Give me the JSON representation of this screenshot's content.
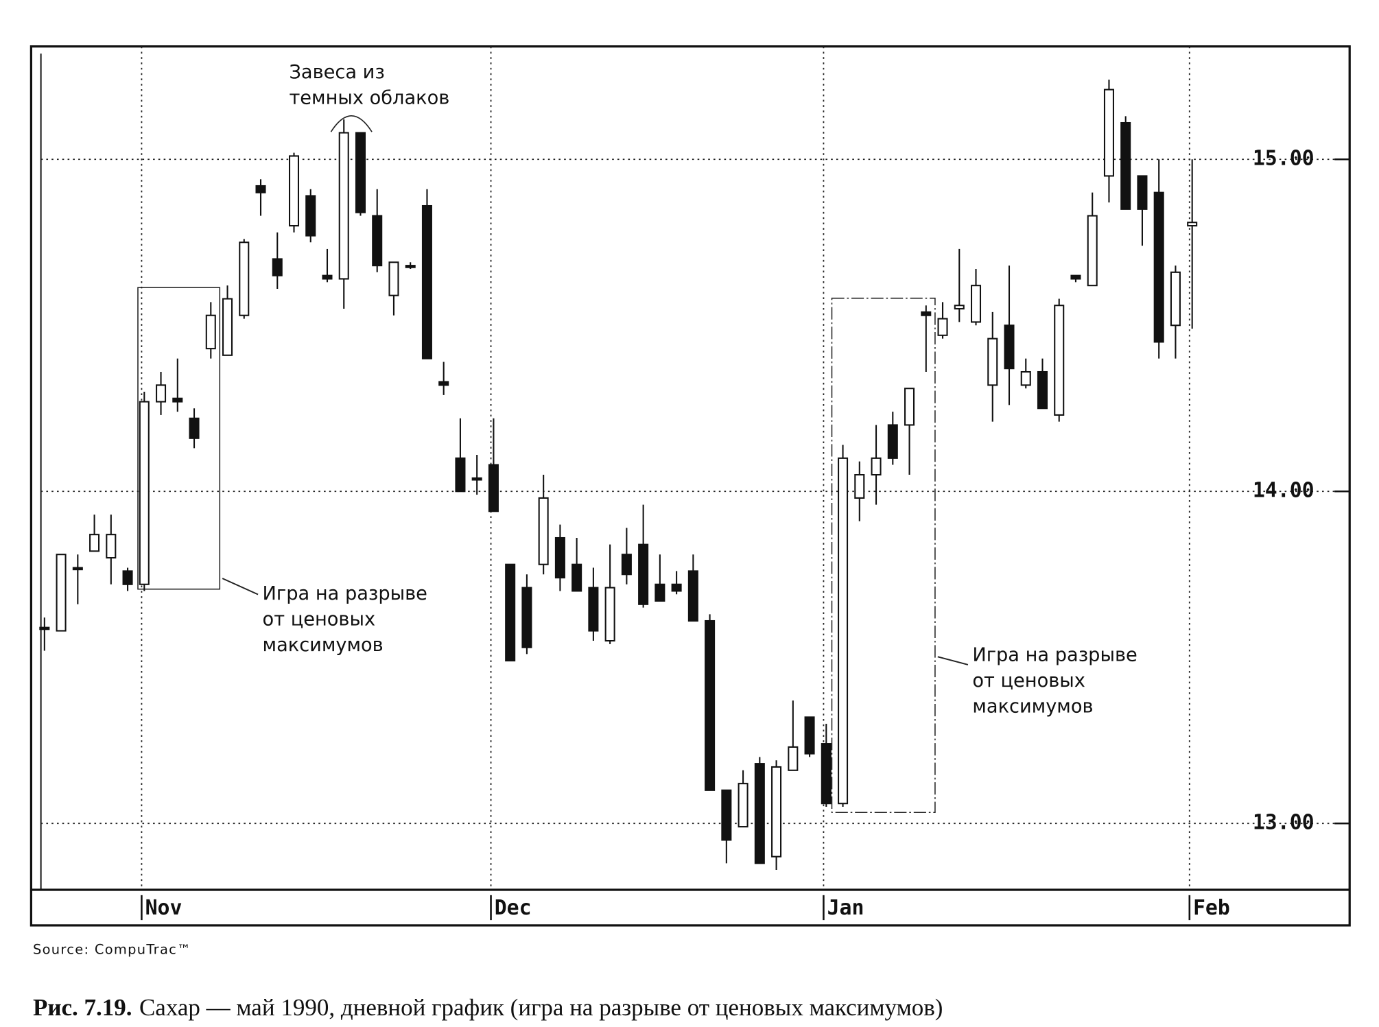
{
  "chart_data": {
    "type": "candlestick",
    "categories": [
      null,
      null,
      null,
      null,
      null,
      null,
      "Nov",
      null,
      null,
      null,
      null,
      null,
      null,
      null,
      null,
      null,
      null,
      null,
      null,
      null,
      null,
      null,
      null,
      null,
      null,
      null,
      null,
      "Dec",
      null,
      null,
      null,
      null,
      null,
      null,
      null,
      null,
      null,
      null,
      null,
      null,
      null,
      null,
      null,
      null,
      null,
      null,
      null,
      "Jan",
      null,
      null,
      null,
      null,
      null,
      null,
      null,
      null,
      null,
      null,
      null,
      null,
      null,
      null,
      null,
      null,
      null,
      null,
      null,
      null,
      null,
      "Feb"
    ],
    "open": [
      13.59,
      13.58,
      13.77,
      13.82,
      13.8,
      13.76,
      13.72,
      14.27,
      14.28,
      14.22,
      14.43,
      14.41,
      14.53,
      14.92,
      14.7,
      14.8,
      14.89,
      14.65,
      14.64,
      15.08,
      14.83,
      14.59,
      14.68,
      14.86,
      14.33,
      14.1,
      14.04,
      14.08,
      13.78,
      13.71,
      13.78,
      13.86,
      13.78,
      13.71,
      13.55,
      13.81,
      13.84,
      13.72,
      13.72,
      13.76,
      13.61,
      13.1,
      12.99,
      13.18,
      12.9,
      13.16,
      13.32,
      13.24,
      13.06,
      13.98,
      14.05,
      14.2,
      14.2,
      14.54,
      14.47,
      14.55,
      14.51,
      14.32,
      14.5,
      14.32,
      14.36,
      14.23,
      14.65,
      14.62,
      14.95,
      15.11,
      14.95,
      14.9,
      14.5,
      14.8
    ],
    "high": [
      13.62,
      13.81,
      13.81,
      13.93,
      13.93,
      13.77,
      14.3,
      14.36,
      14.4,
      14.25,
      14.57,
      14.62,
      14.76,
      14.94,
      14.78,
      15.02,
      14.91,
      14.73,
      15.12,
      15.08,
      14.91,
      14.69,
      14.69,
      14.91,
      14.39,
      14.22,
      14.11,
      14.22,
      13.78,
      13.75,
      14.05,
      13.9,
      13.86,
      13.77,
      13.84,
      13.89,
      13.96,
      13.81,
      13.76,
      13.81,
      13.63,
      13.1,
      13.16,
      13.2,
      13.19,
      13.37,
      13.32,
      13.3,
      14.14,
      14.09,
      14.2,
      14.24,
      14.31,
      14.56,
      14.57,
      14.73,
      14.67,
      14.54,
      14.68,
      14.4,
      14.4,
      14.58,
      14.65,
      14.9,
      15.24,
      15.13,
      14.95,
      15.0,
      14.68,
      15.0
    ],
    "low": [
      13.52,
      13.58,
      13.66,
      13.82,
      13.72,
      13.7,
      13.7,
      14.23,
      14.24,
      14.13,
      14.4,
      14.41,
      14.52,
      14.83,
      14.61,
      14.78,
      14.75,
      14.63,
      14.55,
      14.83,
      14.66,
      14.53,
      14.67,
      14.4,
      14.29,
      14.0,
      13.99,
      13.94,
      13.49,
      13.51,
      13.75,
      13.7,
      13.7,
      13.55,
      13.54,
      13.72,
      13.65,
      13.67,
      13.69,
      13.61,
      13.1,
      12.88,
      12.99,
      12.88,
      12.86,
      13.16,
      13.2,
      13.05,
      13.05,
      13.91,
      13.96,
      14.08,
      14.05,
      14.36,
      14.46,
      14.51,
      14.5,
      14.21,
      14.26,
      14.31,
      14.25,
      14.21,
      14.63,
      14.62,
      14.87,
      14.85,
      14.74,
      14.4,
      14.4,
      14.49
    ],
    "close": [
      13.59,
      13.81,
      13.77,
      13.87,
      13.87,
      13.72,
      14.27,
      14.32,
      14.27,
      14.16,
      14.53,
      14.58,
      14.75,
      14.9,
      14.65,
      15.01,
      14.77,
      14.64,
      15.08,
      14.84,
      14.68,
      14.69,
      14.68,
      14.4,
      14.32,
      14.0,
      14.04,
      13.94,
      13.49,
      13.53,
      13.98,
      13.74,
      13.7,
      13.58,
      13.71,
      13.75,
      13.66,
      13.67,
      13.7,
      13.61,
      13.1,
      12.95,
      13.12,
      12.88,
      13.17,
      13.23,
      13.21,
      13.06,
      14.1,
      14.05,
      14.1,
      14.1,
      14.31,
      14.53,
      14.52,
      14.56,
      14.62,
      14.46,
      14.37,
      14.36,
      14.25,
      14.56,
      14.64,
      14.83,
      15.21,
      14.85,
      14.85,
      14.45,
      14.66,
      14.81
    ],
    "up_color": "#ffffff",
    "down_color": "#111111",
    "ylim": [
      12.8,
      15.34
    ],
    "yticks": [
      {
        "value": 13,
        "label": "13.00"
      },
      {
        "value": 14,
        "label": "14.00"
      },
      {
        "value": 15,
        "label": "15.00"
      }
    ],
    "grid": true,
    "annotations": [
      {
        "lines": [
          "Завеса из",
          "темных облаков"
        ]
      },
      {
        "lines": [
          "Игра на разрыве",
          "от ценовых",
          "максимумов"
        ]
      },
      {
        "lines": [
          "Игра на разрыве",
          "от ценовых",
          "максимумов"
        ]
      }
    ],
    "source": "Source:  CompuTrac™",
    "caption_label": "Рис. 7.19.",
    "caption": "Сахар — май 1990, дневной график (игра на разрыве от ценовых максимумов)"
  }
}
